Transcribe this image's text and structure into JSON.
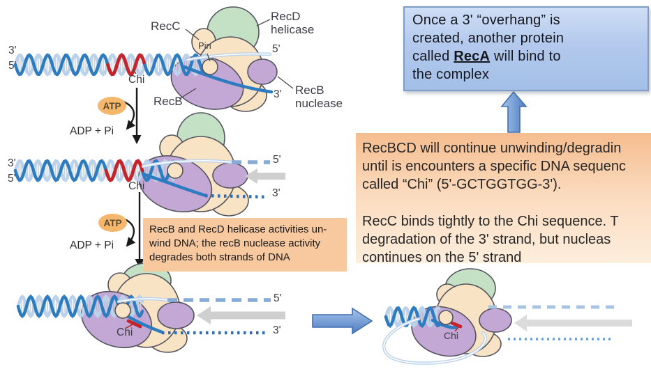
{
  "labels": {
    "stage1": {
      "three_prime_left": "3'",
      "five_prime_left": "5'",
      "chi": "Chi",
      "recc": "RecC",
      "pin": "Pin",
      "recd_helicase": "RecD helicase",
      "five_prime_right": "5'",
      "recb": "RecB",
      "three_prime_right": "3'",
      "recb_nuclease": "RecB nuclease"
    },
    "cycle1": {
      "atp": "ATP",
      "adp": "ADP + Pi"
    },
    "stage2": {
      "three_prime_left": "3'",
      "five_prime_left": "5'",
      "chi": "Chi",
      "five_prime_right": "5'",
      "three_prime_right": "3'"
    },
    "cycle2": {
      "atp": "ATP",
      "adp": "ADP + Pi"
    },
    "stage3": {
      "chi": "Chi",
      "five_prime_right": "5'",
      "three_prime_right": "3'"
    },
    "stage4": {
      "chi": "Chi"
    }
  },
  "blue_box": {
    "line1": "Once a 3' “overhang” is",
    "line2": "created, another protein",
    "line3_pre": "called ",
    "line3_reca": "RecA",
    "line3_post": " will bind to",
    "line4": "the complex"
  },
  "orange_box": {
    "p1": [
      "RecBCD will continue unwinding/degradin",
      "until is encounters a specific DNA sequenc",
      "called “Chi” (5'-GCTGGTGG-3')."
    ],
    "p2": [
      "RecC binds tightly to the Chi sequence. T",
      "degradation of the 3' strand, but nucleas",
      "continues on the 5' strand"
    ]
  },
  "small_box": {
    "lines": [
      "RecB and RecD helicase activities un-",
      "wind DNA; the recB nuclease activity",
      "degrades both strands of DNA"
    ]
  },
  "colors": {
    "dna_dark": "#2e7cc0",
    "dna_light": "#bcd2ea",
    "dna_rung": "#c9d4dc",
    "chi_red": "#c6232a",
    "protein_green": "#c5e1c5",
    "protein_cream": "#f8e4c4",
    "protein_purple": "#c3a7d5",
    "outline": "#54545f",
    "atp_fill": "#f5b76c",
    "blue_box_top": "#cedef5",
    "blue_box_bottom": "#a3bfe7",
    "blue_box_border": "#7e9cc4",
    "arrow_blue_light": "#a7c3ea",
    "arrow_blue_dark": "#4d7dc2",
    "gray_arrow": "#cfcfcf",
    "dash_blue": "#85abd6",
    "dot_blue": "#2e6cb3",
    "orange_top": "#f5bd8f",
    "orange_bottom": "#fdeedd",
    "small_box_bg": "#f8c89e"
  }
}
